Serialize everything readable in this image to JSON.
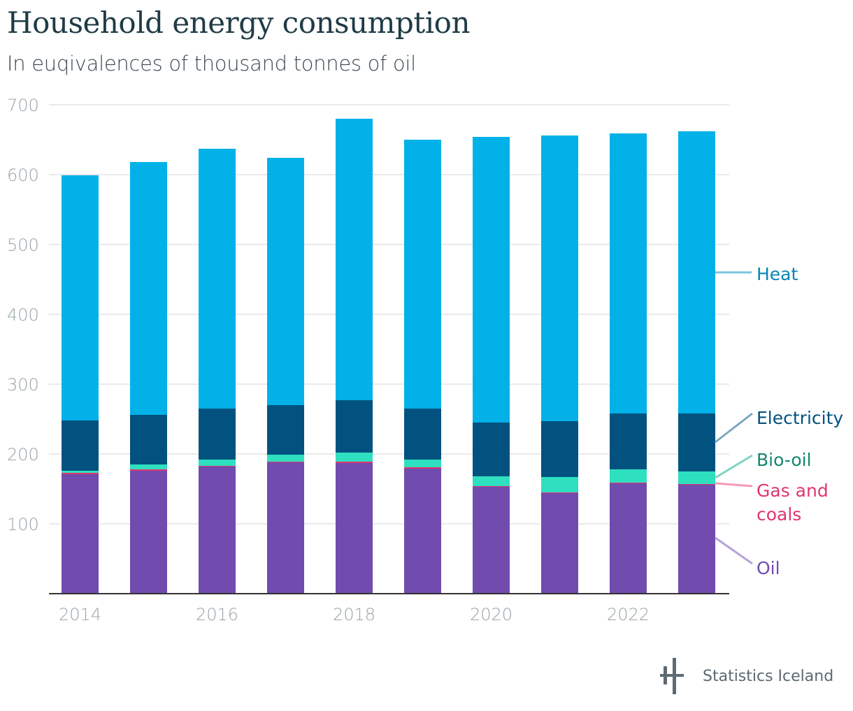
{
  "header": {
    "title": "Household energy consumption",
    "subtitle": "In euqivalences of thousand tonnes of oil"
  },
  "footer": {
    "brand": "Statistics Iceland"
  },
  "chart_data": {
    "type": "bar",
    "stacked": true,
    "title": "Household energy consumption",
    "subtitle": "In euqivalences of thousand tonnes of oil",
    "xlabel": "",
    "ylabel": "",
    "ylim": [
      0,
      700
    ],
    "yticks": [
      100,
      200,
      300,
      400,
      500,
      600,
      700
    ],
    "grid": true,
    "legend_position": "right",
    "categories": [
      "2014",
      "2015",
      "2016",
      "2017",
      "2018",
      "2019",
      "2020",
      "2021",
      "2022",
      "2023"
    ],
    "xtick_labels": [
      "2014",
      "2016",
      "2018",
      "2020",
      "2022"
    ],
    "series": [
      {
        "name": "Oil",
        "legend_lines": [
          "Oil"
        ],
        "color": "#714bae",
        "label_color": "#714bae",
        "leader_color": "#b6a3da",
        "values": [
          171,
          176,
          182,
          188,
          187,
          179,
          153,
          144,
          158,
          156
        ]
      },
      {
        "name": "Gas and coals",
        "legend_lines": [
          "Gas and",
          "coals"
        ],
        "color": "#e0366d",
        "label_color": "#e0366d",
        "leader_color": "#f39bb7",
        "values": [
          2,
          2,
          1,
          1,
          2,
          2,
          1,
          1,
          1,
          1
        ]
      },
      {
        "name": "Bio-oil",
        "legend_lines": [
          "Bio-oil"
        ],
        "color": "#2ee0c0",
        "label_color": "#13876e",
        "leader_color": "#7fd3c1",
        "values": [
          3,
          7,
          9,
          10,
          13,
          11,
          14,
          22,
          19,
          18
        ]
      },
      {
        "name": "Electricity",
        "legend_lines": [
          "Electricity"
        ],
        "color": "#02527f",
        "label_color": "#02527f",
        "leader_color": "#7da6c0",
        "values": [
          72,
          71,
          73,
          71,
          75,
          73,
          77,
          80,
          80,
          83
        ]
      },
      {
        "name": "Heat",
        "legend_lines": [
          "Heat"
        ],
        "color": "#02b1e8",
        "label_color": "#0686b3",
        "leader_color": "#7cc4dd",
        "values": [
          351,
          362,
          372,
          354,
          403,
          385,
          409,
          409,
          401,
          404
        ]
      }
    ]
  }
}
